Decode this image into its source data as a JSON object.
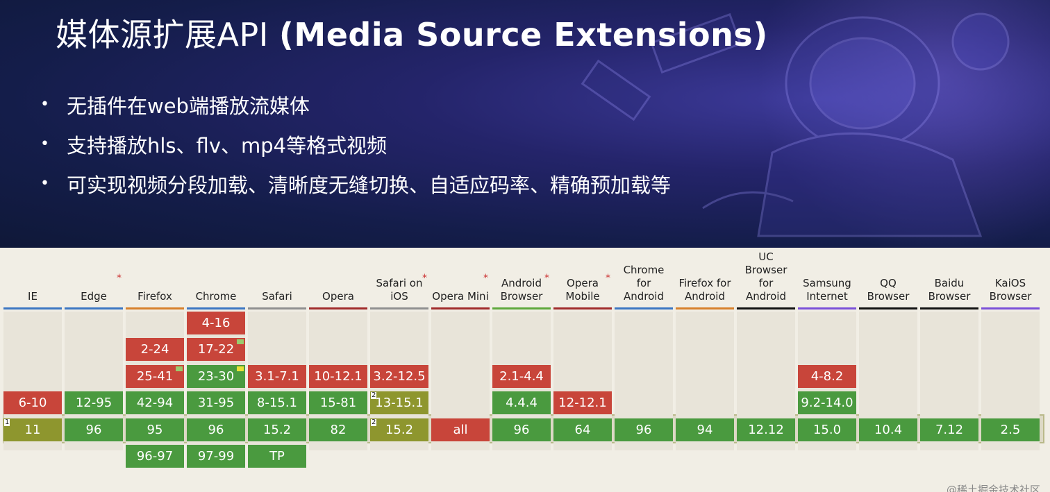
{
  "slide": {
    "title_cn": "媒体源扩展API",
    "title_en": "(Media Source Extensions)",
    "bullets": [
      "无插件在web端播放流媒体",
      "支持播放hls、flv、mp4等格式视频",
      "可实现视频分段加载、清晰度无缝切换、自适应码率、精确预加载等"
    ]
  },
  "colors": {
    "unsupported": "#c8453a",
    "supported": "#4a9a3f",
    "partial": "#8e962e",
    "hero_bg": "#141d4a"
  },
  "browsers": [
    {
      "name": "IE",
      "underline": "#3b76c2",
      "asterisk": "",
      "cells": [
        {
          "row": 3,
          "text": "6-10",
          "type": "red"
        },
        {
          "row": 4,
          "text": "11",
          "type": "olive",
          "note": "1"
        }
      ]
    },
    {
      "name": "Edge",
      "underline": "#3b76c2",
      "asterisk": "*",
      "cells": [
        {
          "row": 3,
          "text": "12-95",
          "type": "green"
        },
        {
          "row": 4,
          "text": "96",
          "type": "green"
        }
      ]
    },
    {
      "name": "Firefox",
      "underline": "#d7802b",
      "asterisk": "",
      "cells": [
        {
          "row": 1,
          "text": "2-24",
          "type": "red"
        },
        {
          "row": 2,
          "text": "25-41",
          "type": "red",
          "flag": "g"
        },
        {
          "row": 3,
          "text": "42-94",
          "type": "green"
        },
        {
          "row": 4,
          "text": "95",
          "type": "green"
        },
        {
          "row": 5,
          "text": "96-97",
          "type": "green"
        }
      ]
    },
    {
      "name": "Chrome",
      "underline": "#3b76c2",
      "asterisk": "",
      "cells": [
        {
          "row": 0,
          "text": "4-16",
          "type": "red"
        },
        {
          "row": 1,
          "text": "17-22",
          "type": "red",
          "flag": "g"
        },
        {
          "row": 2,
          "text": "23-30",
          "type": "green",
          "flag": "y"
        },
        {
          "row": 3,
          "text": "31-95",
          "type": "green"
        },
        {
          "row": 4,
          "text": "96",
          "type": "green"
        },
        {
          "row": 5,
          "text": "97-99",
          "type": "green"
        }
      ]
    },
    {
      "name": "Safari",
      "underline": "#8f8f8f",
      "asterisk": "",
      "cells": [
        {
          "row": 2,
          "text": "3.1-7.1",
          "type": "red"
        },
        {
          "row": 3,
          "text": "8-15.1",
          "type": "green"
        },
        {
          "row": 4,
          "text": "15.2",
          "type": "green"
        },
        {
          "row": 5,
          "text": "TP",
          "type": "green"
        }
      ]
    },
    {
      "name": "Opera",
      "underline": "#a02a2a",
      "asterisk": "",
      "cells": [
        {
          "row": 2,
          "text": "10-12.1",
          "type": "red"
        },
        {
          "row": 3,
          "text": "15-81",
          "type": "green"
        },
        {
          "row": 4,
          "text": "82",
          "type": "green"
        }
      ]
    },
    {
      "name": "Safari on iOS",
      "underline": "#8f8f8f",
      "asterisk": "*",
      "cells": [
        {
          "row": 2,
          "text": "3.2-12.5",
          "type": "red"
        },
        {
          "row": 3,
          "text": "13-15.1",
          "type": "olive",
          "note": "2"
        },
        {
          "row": 4,
          "text": "15.2",
          "type": "olive",
          "note": "2"
        }
      ]
    },
    {
      "name": "Opera Mini",
      "underline": "#a02a2a",
      "asterisk": "*",
      "cells": [
        {
          "row": 4,
          "text": "all",
          "type": "red"
        }
      ]
    },
    {
      "name": "Android Browser",
      "underline": "#5ea83b",
      "asterisk": "*",
      "cells": [
        {
          "row": 2,
          "text": "2.1-4.4",
          "type": "red"
        },
        {
          "row": 3,
          "text": "4.4.4",
          "type": "green"
        },
        {
          "row": 4,
          "text": "96",
          "type": "green"
        }
      ]
    },
    {
      "name": "Opera Mobile",
      "underline": "#a02a2a",
      "asterisk": "*",
      "cells": [
        {
          "row": 3,
          "text": "12-12.1",
          "type": "red"
        },
        {
          "row": 4,
          "text": "64",
          "type": "green"
        }
      ]
    },
    {
      "name": "Chrome for Android",
      "underline": "#3b76c2",
      "asterisk": "",
      "cells": [
        {
          "row": 4,
          "text": "96",
          "type": "green"
        }
      ]
    },
    {
      "name": "Firefox for Android",
      "underline": "#d7802b",
      "asterisk": "",
      "cells": [
        {
          "row": 4,
          "text": "94",
          "type": "green"
        }
      ]
    },
    {
      "name": "UC Browser for Android",
      "underline": "#111111",
      "asterisk": "",
      "cells": [
        {
          "row": 4,
          "text": "12.12",
          "type": "green"
        }
      ]
    },
    {
      "name": "Samsung Internet",
      "underline": "#7a4fd8",
      "asterisk": "",
      "cells": [
        {
          "row": 2,
          "text": "4-8.2",
          "type": "red"
        },
        {
          "row": 3,
          "text": "9.2-14.0",
          "type": "green"
        },
        {
          "row": 4,
          "text": "15.0",
          "type": "green"
        }
      ]
    },
    {
      "name": "QQ Browser",
      "underline": "#111111",
      "asterisk": "",
      "cells": [
        {
          "row": 4,
          "text": "10.4",
          "type": "green"
        }
      ]
    },
    {
      "name": "Baidu Browser",
      "underline": "#111111",
      "asterisk": "",
      "cells": [
        {
          "row": 4,
          "text": "7.12",
          "type": "green"
        }
      ]
    },
    {
      "name": "KaiOS Browser",
      "underline": "#7a4fd8",
      "asterisk": "",
      "cells": [
        {
          "row": 4,
          "text": "2.5",
          "type": "green"
        }
      ]
    }
  ],
  "header_lines": {
    "Safari on iOS": [
      "Safari on",
      "iOS"
    ],
    "Android Browser": [
      "Android",
      "Browser"
    ],
    "Opera Mobile": [
      "Opera",
      "Mobile"
    ],
    "Chrome for Android": [
      "Chrome",
      "for",
      "Android"
    ],
    "Firefox for Android": [
      "Firefox for",
      "Android"
    ],
    "UC Browser for Android": [
      "UC",
      "Browser",
      "for",
      "Android"
    ],
    "Samsung Internet": [
      "Samsung",
      "Internet"
    ],
    "QQ Browser": [
      "QQ",
      "Browser"
    ],
    "Baidu Browser": [
      "Baidu",
      "Browser"
    ],
    "KaiOS Browser": [
      "KaiOS",
      "Browser"
    ]
  },
  "watermark": "@稀土掘金技术社区"
}
